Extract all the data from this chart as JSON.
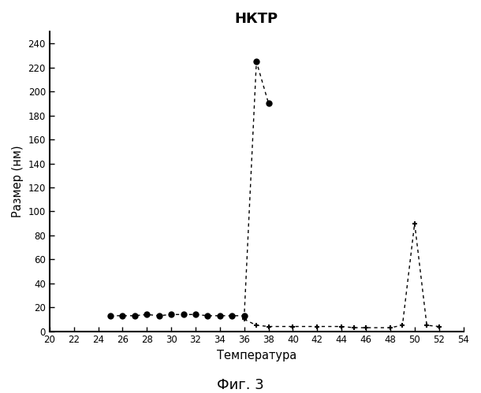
{
  "title": "НКТР",
  "xlabel": "Температура",
  "ylabel": "Размер (нм)",
  "fig_caption": "Фиг. 3",
  "xlim": [
    20,
    54
  ],
  "ylim": [
    0,
    250
  ],
  "xticks": [
    20,
    22,
    24,
    26,
    28,
    30,
    32,
    34,
    36,
    38,
    40,
    42,
    44,
    46,
    48,
    50,
    52,
    54
  ],
  "yticks": [
    0,
    20,
    40,
    60,
    80,
    100,
    120,
    140,
    160,
    180,
    200,
    220,
    240
  ],
  "series_circle": {
    "x": [
      25,
      26,
      27,
      28,
      29,
      30,
      31,
      32,
      33,
      34,
      35,
      36,
      37,
      38
    ],
    "y": [
      13,
      13,
      13,
      14,
      13,
      14,
      14,
      14,
      13,
      13,
      13,
      13,
      225,
      190
    ],
    "marker": "o",
    "markersize": 5,
    "color": "black"
  },
  "series_cross": {
    "x": [
      36,
      37,
      38,
      40,
      42,
      44,
      45,
      46,
      48,
      49,
      50,
      51,
      52
    ],
    "y": [
      10,
      5,
      4,
      4,
      4,
      4,
      3,
      3,
      3,
      5,
      90,
      5,
      4
    ],
    "marker": "+",
    "markersize": 5,
    "color": "black"
  },
  "background_color": "#ffffff",
  "text_color": "#000000"
}
